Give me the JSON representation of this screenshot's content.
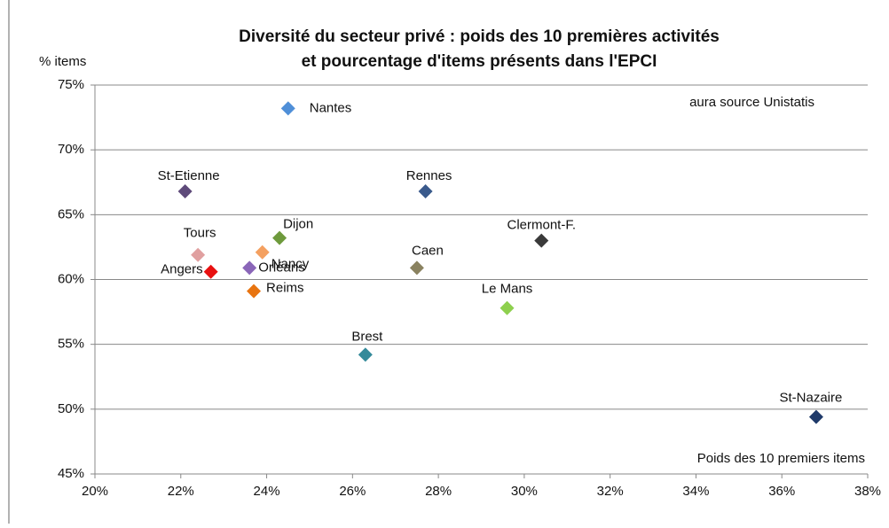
{
  "chart_data": {
    "type": "scatter",
    "title": [
      "Diversité du secteur privé : poids des 10 premières activités",
      "et pourcentage d'items présents dans l'EPCI"
    ],
    "y_label": "% items",
    "x_label": "Poids des 10 premiers items",
    "annotation": "aura source Unistatis",
    "labels": [
      "Nantes",
      "St-Etienne",
      "Rennes",
      "Clermont-F.",
      "Dijon",
      "Nancy",
      "Tours",
      "Caen",
      "Orléans",
      "Angers",
      "Reims",
      "Le Mans",
      "Brest",
      "St-Nazaire"
    ],
    "x": [
      24.5,
      22.1,
      27.7,
      30.4,
      24.3,
      23.9,
      22.4,
      27.5,
      23.6,
      22.7,
      23.7,
      29.6,
      26.3,
      36.8
    ],
    "values": [
      73.2,
      66.8,
      66.8,
      63.0,
      63.2,
      62.1,
      61.9,
      60.9,
      60.9,
      60.6,
      59.1,
      57.8,
      54.2,
      49.4
    ],
    "colors": [
      "#4f8fd8",
      "#5e4a7a",
      "#3a5a8c",
      "#3a3a3a",
      "#6e9a3c",
      "#f4a060",
      "#e0a0a0",
      "#8a8260",
      "#8a66b8",
      "#e81010",
      "#e87410",
      "#8ed04e",
      "#348a9a",
      "#1f3a6a"
    ],
    "xlim": [
      20,
      38
    ],
    "xticks": [
      {
        "value": 20,
        "label": "20%"
      },
      {
        "value": 22,
        "label": "22%"
      },
      {
        "value": 24,
        "label": "24%"
      },
      {
        "value": 26,
        "label": "26%"
      },
      {
        "value": 28,
        "label": "28%"
      },
      {
        "value": 30,
        "label": "30%"
      },
      {
        "value": 32,
        "label": "32%"
      },
      {
        "value": 34,
        "label": "34%"
      },
      {
        "value": 36,
        "label": "36%"
      },
      {
        "value": 38,
        "label": "38%"
      }
    ],
    "ylim": [
      45,
      75
    ],
    "yticks": [
      {
        "value": 45,
        "label": "45%"
      },
      {
        "value": 50,
        "label": "50%"
      },
      {
        "value": 55,
        "label": "55%"
      },
      {
        "value": 60,
        "label": "60%"
      },
      {
        "value": 65,
        "label": "65%"
      },
      {
        "value": 70,
        "label": "70%"
      },
      {
        "value": 75,
        "label": "75%"
      }
    ],
    "grid": true
  }
}
